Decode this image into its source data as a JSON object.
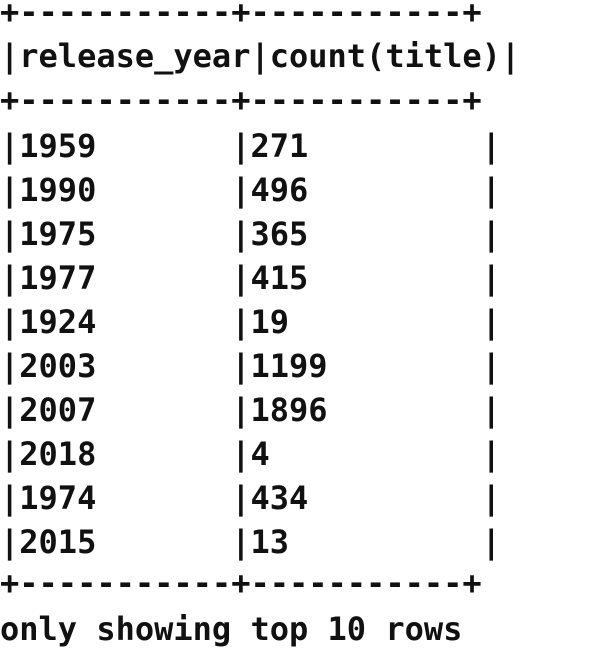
{
  "table": {
    "border_top": "+-----------+-----------+",
    "header_sep": "+-----------+-----------+",
    "border_bottom": "+-----------+-----------+",
    "columns": [
      "release_year",
      "count(title)"
    ],
    "rows": [
      [
        "1959",
        "271"
      ],
      [
        "1990",
        "496"
      ],
      [
        "1975",
        "365"
      ],
      [
        "1977",
        "415"
      ],
      [
        "1924",
        "19"
      ],
      [
        "2003",
        "1199"
      ],
      [
        "2007",
        "1896"
      ],
      [
        "2018",
        "4"
      ],
      [
        "1974",
        "434"
      ],
      [
        "2015",
        "13"
      ]
    ]
  },
  "footer": {
    "message": "only showing top 10 rows"
  }
}
